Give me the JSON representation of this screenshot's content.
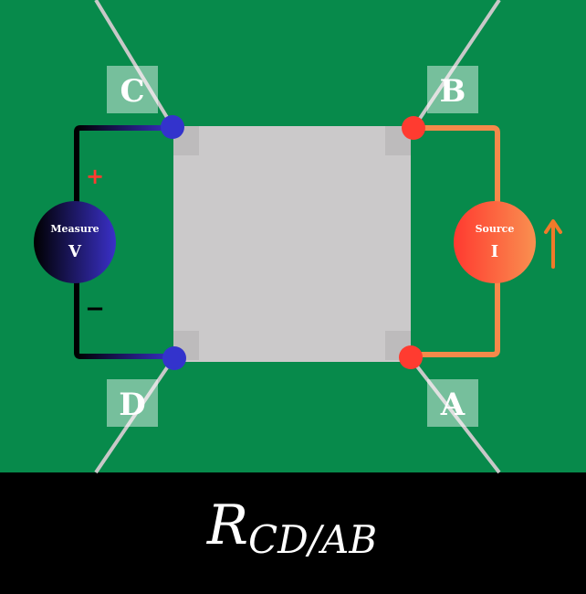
{
  "corners": {
    "c": "C",
    "b": "B",
    "d": "D",
    "a": "A"
  },
  "voltmeter": {
    "title": "Measure",
    "symbol": "V",
    "plus": "+",
    "minus": "−"
  },
  "source": {
    "title": "Source",
    "symbol": "I"
  },
  "formula": {
    "main": "R",
    "subscript": "CD/AB"
  },
  "colors": {
    "board": "#078a4b",
    "sample": "#cbc9ca",
    "wire": "#c8c8c8",
    "voltmeter_contact": "#3333cc",
    "source_contact": "#ff3b30",
    "source_wire": "#f5894a",
    "plus_sign": "#ff3b30",
    "arrow": "#f07a2a"
  }
}
